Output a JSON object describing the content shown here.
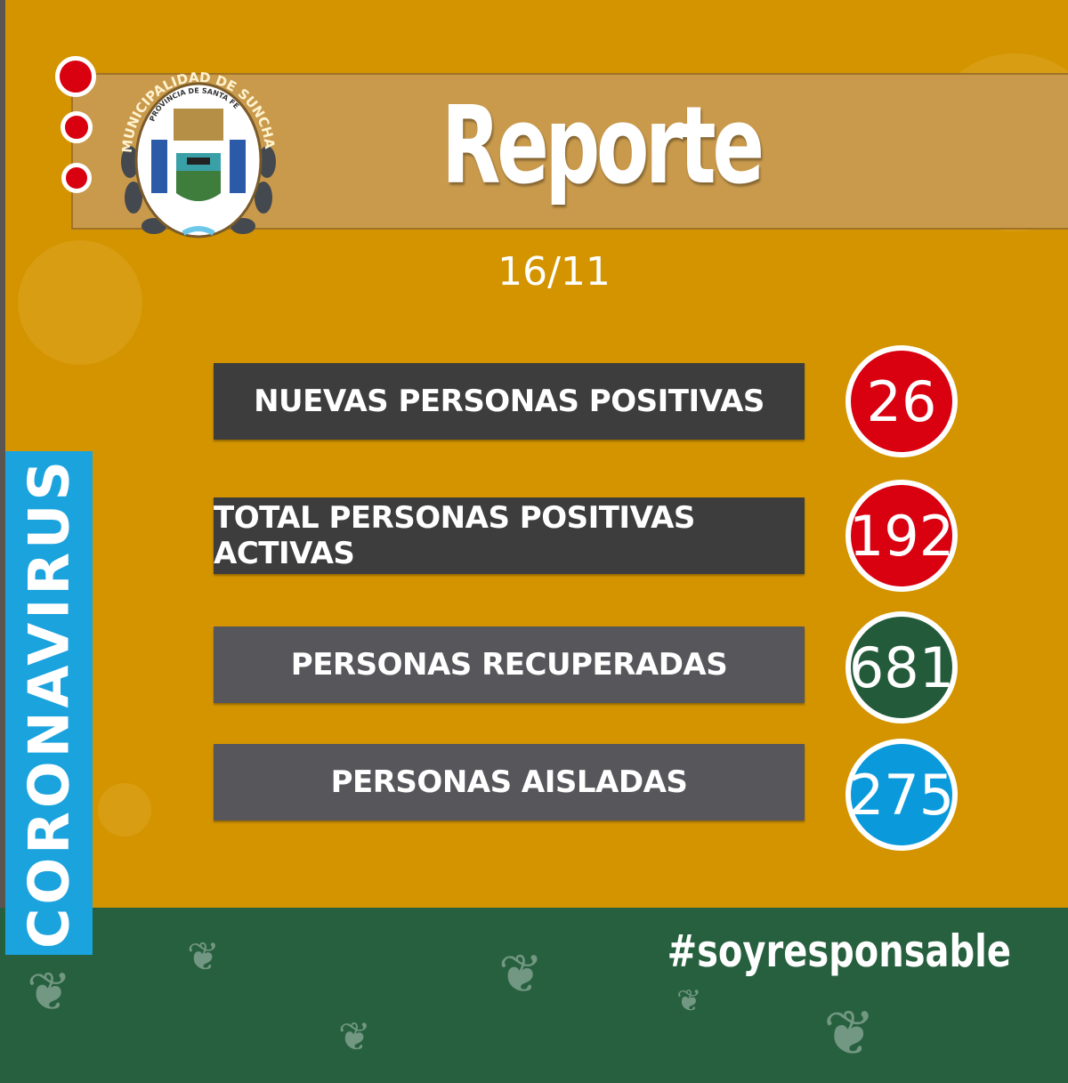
{
  "header": {
    "logo_text_outer": "MUNICIPALIDAD DE SUNCHALES",
    "logo_text_inner": "PROVINCIA DE SANTA FE",
    "title": "Reporte",
    "date": "16/11"
  },
  "side_label": "CORONAVIRUS",
  "stats": [
    {
      "label": "NUEVAS PERSONAS POSITIVAS",
      "value": "26",
      "color": "#D90010",
      "bar_color": "#3E3D3D"
    },
    {
      "label": "TOTAL PERSONAS POSITIVAS ACTIVAS",
      "value": "192",
      "color": "#D90010",
      "bar_color": "#3E3D3D"
    },
    {
      "label": "PERSONAS RECUPERADAS",
      "value": "681",
      "color": "#235B3A",
      "bar_color": "#57565B"
    },
    {
      "label": "PERSONAS AISLADAS",
      "value": "275",
      "color": "#0A9ADB",
      "bar_color": "#57565B"
    }
  ],
  "footer": {
    "hashtag": "#soyresponsable"
  },
  "colors": {
    "background": "#D39400",
    "footer": "#27603F",
    "side": "#1BA3DE"
  }
}
